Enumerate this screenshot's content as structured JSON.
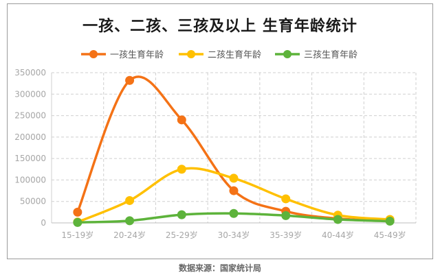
{
  "title": "一孩、二孩、三孩及以上 生育年龄统计",
  "source": "数据来源：国家统计局",
  "chart_data": {
    "type": "line",
    "title": "一孩、二孩、三孩及以上 生育年龄统计",
    "categories": [
      "15-19岁",
      "20-24岁",
      "25-29岁",
      "30-34岁",
      "35-39岁",
      "40-44岁",
      "45-49岁"
    ],
    "series": [
      {
        "name": "一孩生育年龄",
        "color": "#f47216",
        "values": [
          25000,
          332000,
          240000,
          75000,
          27000,
          10000,
          5000
        ]
      },
      {
        "name": "二孩生育年龄",
        "color": "#ffc000",
        "values": [
          2000,
          52000,
          125000,
          104000,
          56000,
          18000,
          8000
        ]
      },
      {
        "name": "三孩生育年龄",
        "color": "#5db33b",
        "values": [
          1000,
          5000,
          19000,
          22000,
          17000,
          8000,
          4000
        ]
      }
    ],
    "ylim": [
      0,
      350000
    ],
    "yticks": [
      0,
      50000,
      100000,
      150000,
      200000,
      250000,
      300000,
      350000
    ],
    "smooth": true,
    "grid": true,
    "legend": "top-center",
    "xlabel": "",
    "ylabel": ""
  }
}
